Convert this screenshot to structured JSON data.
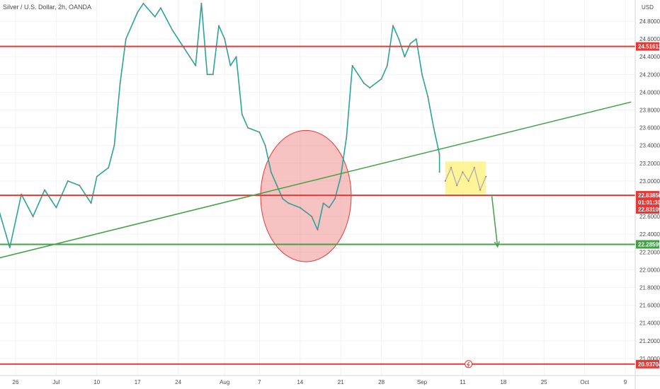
{
  "chart_data": {
    "type": "candlestick",
    "title": "Silver / U.S. Dollar, 2h, OANDA",
    "currency": "USD",
    "y_ticks": [
      "24.80000",
      "24.60000",
      "24.40000",
      "24.20000",
      "24.00000",
      "23.80000",
      "23.60000",
      "23.40000",
      "23.20000",
      "23.00000",
      "22.80000",
      "22.60000",
      "22.40000",
      "22.20000",
      "22.00000",
      "21.80000",
      "21.60000",
      "21.40000",
      "21.20000",
      "21.00000"
    ],
    "x_ticks": [
      "26",
      "Jul",
      "10",
      "17",
      "24",
      "Aug",
      "7",
      "14",
      "21",
      "28",
      "Sep",
      "11",
      "18",
      "25",
      "Oct",
      "9"
    ],
    "ylim": [
      20.9,
      25.0
    ],
    "price_series": [
      {
        "date": "2023-06-22",
        "price": 22.95
      },
      {
        "date": "2023-06-23",
        "price": 22.7
      },
      {
        "date": "2023-06-25",
        "price": 22.25
      },
      {
        "date": "2023-06-27",
        "price": 22.85
      },
      {
        "date": "2023-06-29",
        "price": 22.6
      },
      {
        "date": "2023-07-01",
        "price": 22.9
      },
      {
        "date": "2023-07-03",
        "price": 22.7
      },
      {
        "date": "2023-07-05",
        "price": 23.0
      },
      {
        "date": "2023-07-07",
        "price": 22.95
      },
      {
        "date": "2023-07-09",
        "price": 22.75
      },
      {
        "date": "2023-07-10",
        "price": 23.05
      },
      {
        "date": "2023-07-12",
        "price": 23.15
      },
      {
        "date": "2023-07-13",
        "price": 23.4
      },
      {
        "date": "2023-07-14",
        "price": 24.1
      },
      {
        "date": "2023-07-15",
        "price": 24.6
      },
      {
        "date": "2023-07-17",
        "price": 24.9
      },
      {
        "date": "2023-07-18",
        "price": 25.0
      },
      {
        "date": "2023-07-20",
        "price": 24.85
      },
      {
        "date": "2023-07-21",
        "price": 24.95
      },
      {
        "date": "2023-07-23",
        "price": 24.7
      },
      {
        "date": "2023-07-25",
        "price": 24.5
      },
      {
        "date": "2023-07-26",
        "price": 24.4
      },
      {
        "date": "2023-07-27",
        "price": 24.3
      },
      {
        "date": "2023-07-28",
        "price": 25.0
      },
      {
        "date": "2023-07-29",
        "price": 24.2
      },
      {
        "date": "2023-07-30",
        "price": 24.2
      },
      {
        "date": "2023-07-31",
        "price": 24.75
      },
      {
        "date": "2023-08-01",
        "price": 24.6
      },
      {
        "date": "2023-08-02",
        "price": 24.3
      },
      {
        "date": "2023-08-03",
        "price": 24.4
      },
      {
        "date": "2023-08-04",
        "price": 23.75
      },
      {
        "date": "2023-08-05",
        "price": 23.6
      },
      {
        "date": "2023-08-07",
        "price": 23.55
      },
      {
        "date": "2023-08-08",
        "price": 23.4
      },
      {
        "date": "2023-08-09",
        "price": 23.1
      },
      {
        "date": "2023-08-10",
        "price": 22.95
      },
      {
        "date": "2023-08-11",
        "price": 22.8
      },
      {
        "date": "2023-08-12",
        "price": 22.75
      },
      {
        "date": "2023-08-14",
        "price": 22.7
      },
      {
        "date": "2023-08-15",
        "price": 22.65
      },
      {
        "date": "2023-08-16",
        "price": 22.6
      },
      {
        "date": "2023-08-17",
        "price": 22.45
      },
      {
        "date": "2023-08-18",
        "price": 22.75
      },
      {
        "date": "2023-08-19",
        "price": 22.7
      },
      {
        "date": "2023-08-20",
        "price": 22.8
      },
      {
        "date": "2023-08-21",
        "price": 23.05
      },
      {
        "date": "2023-08-22",
        "price": 23.5
      },
      {
        "date": "2023-08-23",
        "price": 24.3
      },
      {
        "date": "2023-08-24",
        "price": 24.2
      },
      {
        "date": "2023-08-25",
        "price": 24.1
      },
      {
        "date": "2023-08-26",
        "price": 24.05
      },
      {
        "date": "2023-08-28",
        "price": 24.15
      },
      {
        "date": "2023-08-29",
        "price": 24.3
      },
      {
        "date": "2023-08-30",
        "price": 24.75
      },
      {
        "date": "2023-08-31",
        "price": 24.6
      },
      {
        "date": "2023-09-01",
        "price": 24.4
      },
      {
        "date": "2023-09-02",
        "price": 24.55
      },
      {
        "date": "2023-09-03",
        "price": 24.6
      },
      {
        "date": "2023-09-04",
        "price": 24.2
      },
      {
        "date": "2023-09-05",
        "price": 23.95
      },
      {
        "date": "2023-09-06",
        "price": 23.6
      },
      {
        "date": "2023-09-07",
        "price": 23.3
      },
      {
        "date": "2023-09-07",
        "price": 23.1
      }
    ],
    "consolidation_series": [
      {
        "date": "2023-09-08",
        "price": 23.0
      },
      {
        "date": "2023-09-09",
        "price": 23.15
      },
      {
        "date": "2023-09-10",
        "price": 22.95
      },
      {
        "date": "2023-09-11",
        "price": 23.1
      },
      {
        "date": "2023-09-12",
        "price": 23.0
      },
      {
        "date": "2023-09-13",
        "price": 23.15
      },
      {
        "date": "2023-09-14",
        "price": 22.9
      },
      {
        "date": "2023-09-15",
        "price": 23.05
      }
    ],
    "horizontal_levels": [
      {
        "price": 24.51611,
        "label": "24.51611",
        "color": "#e53935"
      },
      {
        "price": 22.8385,
        "label": "22.83850",
        "color": "#e53935"
      },
      {
        "price": 22.28599,
        "label": "22.28599",
        "color": "#43a047"
      },
      {
        "price": 20.93704,
        "label": "20.93704",
        "color": "#e53935"
      }
    ],
    "current_price_tags": [
      {
        "price": 22.8385,
        "label": "22.83850",
        "color": "#e53935"
      },
      {
        "price": 22.83109,
        "label": "22.83109",
        "color": "#e53935"
      }
    ],
    "countdown": "01:01:30",
    "trendline": {
      "start": {
        "date": "2023-06-23",
        "price": 22.13
      },
      "end": {
        "date": "2023-10-10",
        "price": 23.89
      },
      "color": "#43a047"
    },
    "circle_zone": {
      "center_date": "2023-08-15",
      "center_price": 22.83,
      "radius_days": 7.8,
      "radius_price": 0.74,
      "color": "#e53935"
    },
    "box_zone": {
      "from_date": "2023-09-08",
      "to_date": "2023-09-15",
      "top": 23.22,
      "bottom": 22.85,
      "color": "#fff176"
    },
    "arrow": {
      "from": {
        "date": "2023-09-16",
        "price": 22.84
      },
      "to": {
        "date": "2023-09-17",
        "price": 22.26
      },
      "color": "#43a047"
    }
  }
}
